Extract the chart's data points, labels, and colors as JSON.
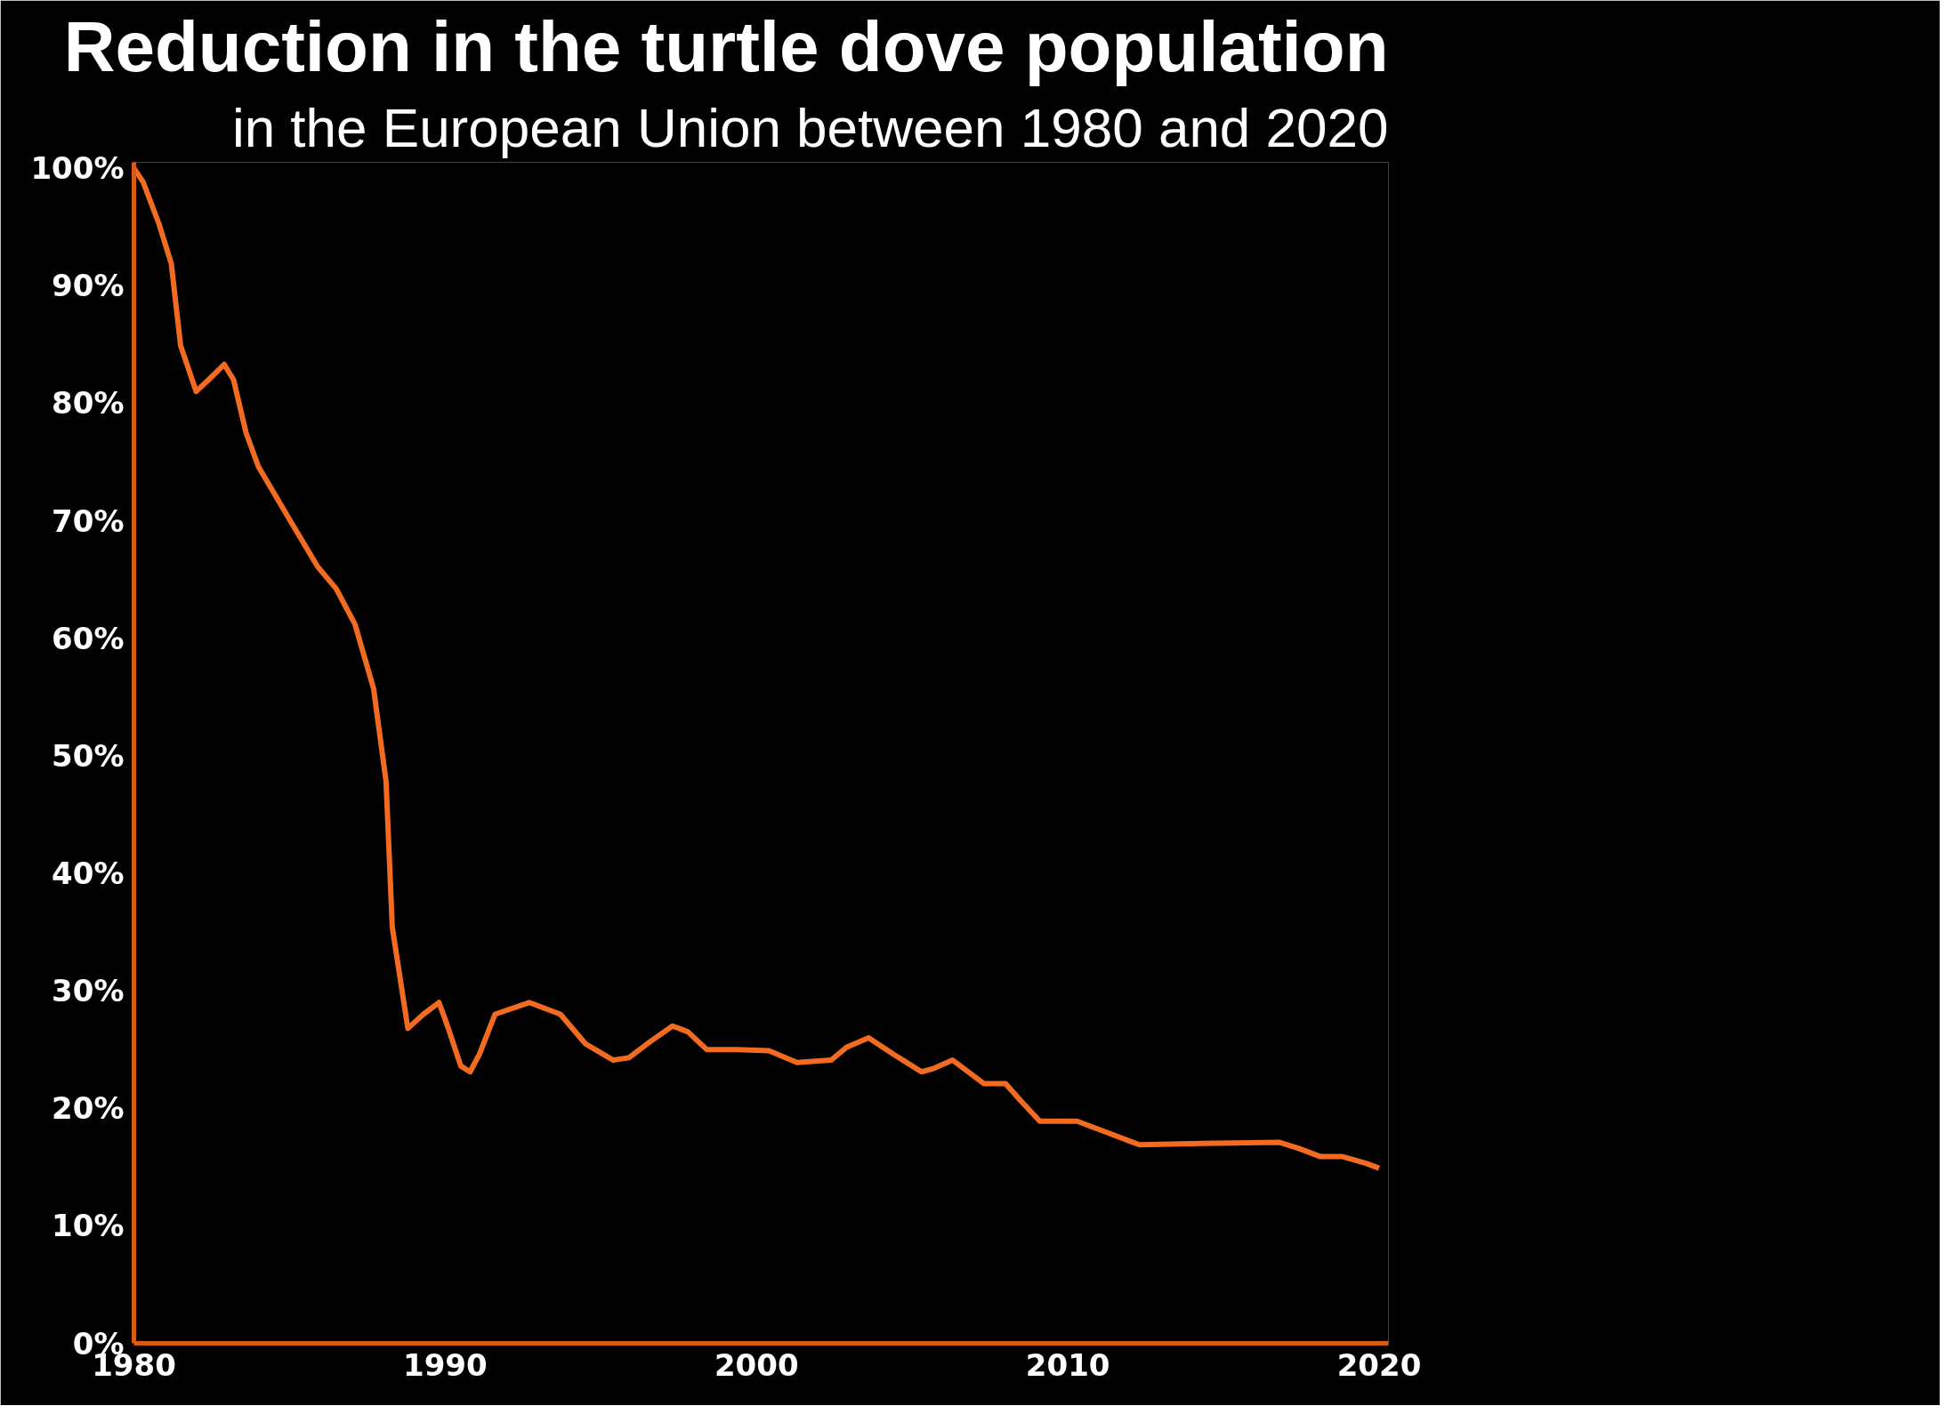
{
  "chart_data": {
    "type": "line",
    "title": "Reduction in the turtle dove population",
    "subtitle": "in the European Union between 1980 and 2020",
    "xlim": [
      1980,
      2020.3
    ],
    "xticks": [
      1980,
      1990,
      2000,
      2010,
      2020
    ],
    "ylim": [
      0,
      100.5
    ],
    "yticks": [
      {
        "value": 0,
        "label": "0%"
      },
      {
        "value": 10,
        "label": "10%"
      },
      {
        "value": 20,
        "label": "20%"
      },
      {
        "value": 30,
        "label": "30%"
      },
      {
        "value": 40,
        "label": "40%"
      },
      {
        "value": 50,
        "label": "50%"
      },
      {
        "value": 60,
        "label": "60%"
      },
      {
        "value": 70,
        "label": "70%"
      },
      {
        "value": 80,
        "label": "80%"
      },
      {
        "value": 90,
        "label": "90%"
      },
      {
        "value": 100,
        "label": "100%"
      }
    ],
    "grid": false,
    "marker": "none",
    "line_style": "solid",
    "x": [
      1980,
      1980.3,
      1980.8,
      1981.2,
      1981.5,
      1982.0,
      1982.4,
      1982.9,
      1983.2,
      1983.6,
      1984.0,
      1985.0,
      1985.9,
      1986.5,
      1987.1,
      1987.7,
      1988.1,
      1988.3,
      1988.8,
      1989.3,
      1989.8,
      1990.1,
      1990.5,
      1990.8,
      1991.1,
      1991.6,
      1992.7,
      1993.7,
      1994.5,
      1995.4,
      1995.9,
      1996.6,
      1997.3,
      1997.8,
      1998.4,
      1999.4,
      2000.4,
      2001.3,
      2002.4,
      2002.9,
      2003.6,
      2004.4,
      2005.3,
      2005.7,
      2006.3,
      2007.3,
      2008.0,
      2008.5,
      2009.1,
      2010.3,
      2011.3,
      2012.3,
      2014.3,
      2016.8,
      2017.4,
      2018.1,
      2018.8,
      2019.6,
      2020.0
    ],
    "series": [
      {
        "color": "#f26b21",
        "values": [
          100,
          98.8,
          95.3,
          91.9,
          84.9,
          81.0,
          82.0,
          83.3,
          82.0,
          77.5,
          74.6,
          70.1,
          66.1,
          64.2,
          61.2,
          55.7,
          47.8,
          35.4,
          26.8,
          28.0,
          29.0,
          26.8,
          23.6,
          23.1,
          24.6,
          28.0,
          29.0,
          28.0,
          25.5,
          24.1,
          24.3,
          25.7,
          27.0,
          26.5,
          25.0,
          25.0,
          24.9,
          23.9,
          24.1,
          25.2,
          26.0,
          24.6,
          23.1,
          23.4,
          24.1,
          22.1,
          22.1,
          20.6,
          18.9,
          18.9,
          17.9,
          16.9,
          17.0,
          17.1,
          16.6,
          15.9,
          15.9,
          15.3,
          14.9
        ]
      }
    ]
  }
}
